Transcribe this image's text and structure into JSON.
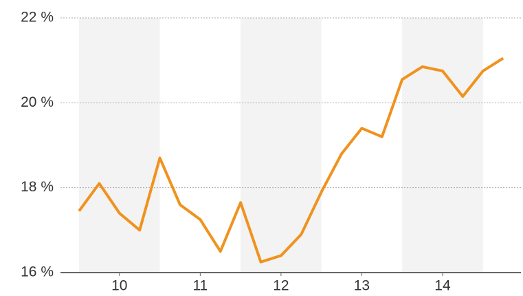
{
  "chart_data": {
    "type": "line",
    "x": [
      9.5,
      9.75,
      10,
      10.25,
      10.5,
      10.75,
      11,
      11.25,
      11.5,
      11.75,
      12,
      12.25,
      12.5,
      12.75,
      13,
      13.25,
      13.5,
      13.75,
      14,
      14.25,
      14.5,
      14.75
    ],
    "series": [
      {
        "color": "#f0921e",
        "values": [
          17.45,
          18.1,
          17.4,
          17.0,
          18.7,
          17.6,
          17.25,
          16.5,
          17.65,
          16.25,
          16.4,
          16.9,
          17.9,
          18.8,
          19.4,
          19.2,
          20.55,
          20.85,
          20.75,
          20.15,
          20.75,
          21.05
        ]
      }
    ],
    "xlim": [
      9.27,
      14.97
    ],
    "xticks": [
      10,
      11,
      12,
      13,
      14
    ],
    "ylim": [
      16,
      22
    ],
    "yticks": [
      {
        "value": 16,
        "label": "16 %"
      },
      {
        "value": 18,
        "label": "18 %"
      },
      {
        "value": 20,
        "label": "20 %"
      },
      {
        "value": 22,
        "label": "22 %"
      }
    ],
    "grid": true,
    "alternate_bands": true
  }
}
